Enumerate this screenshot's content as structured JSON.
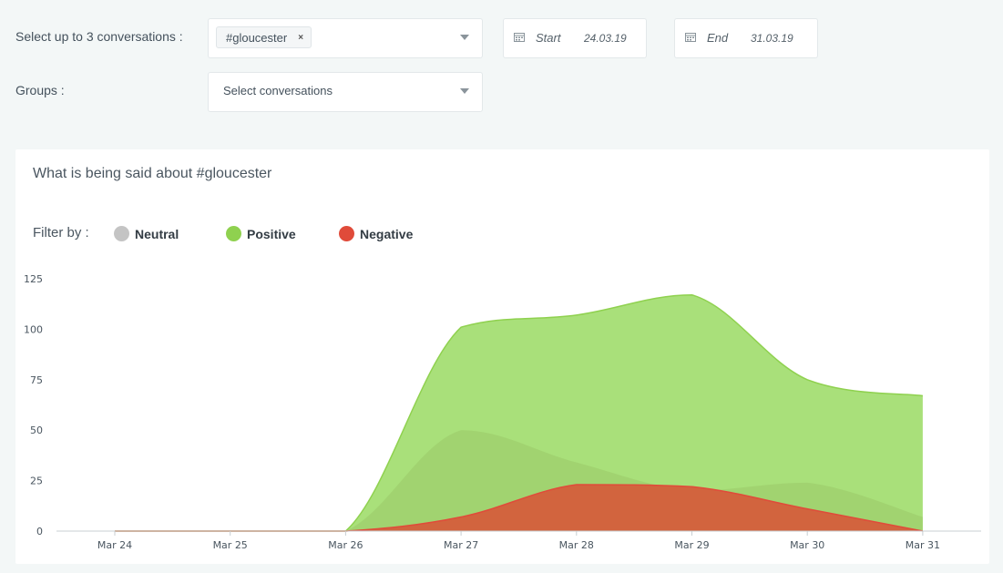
{
  "form": {
    "conversations_label": "Select up to 3 conversations :",
    "selected_tag": "#gloucester",
    "tag_remove": "×",
    "groups_label": "Groups :",
    "groups_placeholder": "Select conversations",
    "start_label": "Start",
    "start_value": "24.03.19",
    "end_label": "End",
    "end_value": "31.03.19"
  },
  "card": {
    "title": "What is being said about #gloucester",
    "filter_label": "Filter by :"
  },
  "legend": [
    {
      "label": "Neutral",
      "color": "#c4c4c4"
    },
    {
      "label": "Positive",
      "color": "#8fd14f"
    },
    {
      "label": "Negative",
      "color": "#e04b3a"
    }
  ],
  "chart_data": {
    "type": "area",
    "categories": [
      "Mar 24",
      "Mar 25",
      "Mar 26",
      "Mar 27",
      "Mar 28",
      "Mar 29",
      "Mar 30",
      "Mar 31"
    ],
    "ylim": [
      0,
      125
    ],
    "yticks": [
      0,
      25,
      50,
      75,
      100,
      125
    ],
    "series": [
      {
        "name": "Positive",
        "color": "#8fd14f",
        "values": [
          0,
          0,
          0,
          101,
          107,
          117,
          75,
          67
        ]
      },
      {
        "name": "Neutral",
        "color": "#c4c4c4",
        "values": [
          0,
          0,
          0,
          50,
          34,
          20,
          24,
          7
        ]
      },
      {
        "name": "Negative",
        "color": "#e04b3a",
        "values": [
          0,
          0,
          0,
          7,
          23,
          22,
          11,
          0
        ]
      }
    ]
  }
}
